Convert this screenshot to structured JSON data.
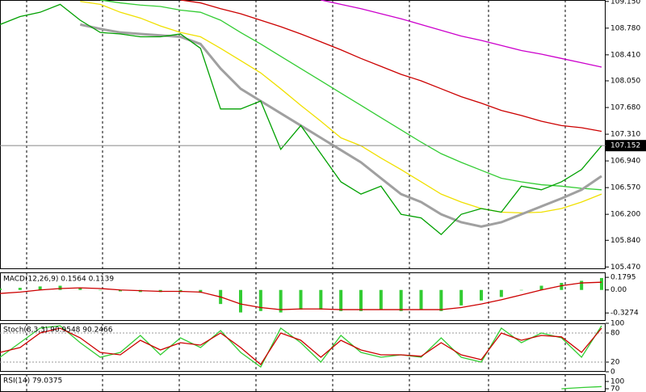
{
  "chart_data": [
    {
      "type": "line",
      "ylim": [
        105.44,
        109.17
      ],
      "yticks": [
        {
          "value": 109.15,
          "label": "109.150"
        },
        {
          "value": 108.78,
          "label": "108.780"
        },
        {
          "value": 108.41,
          "label": "108.410"
        },
        {
          "value": 108.05,
          "label": "108.050"
        },
        {
          "value": 107.68,
          "label": "107.680"
        },
        {
          "value": 107.31,
          "label": "107.310"
        },
        {
          "value": 106.94,
          "label": "106.940"
        },
        {
          "value": 106.57,
          "label": "106.570"
        },
        {
          "value": 106.2,
          "label": "106.200"
        },
        {
          "value": 105.84,
          "label": "105.840"
        },
        {
          "value": 105.47,
          "label": "105.470"
        }
      ],
      "last_price": 107.152,
      "series": [
        {
          "color": "#cc00cc",
          "values": [
            null,
            null,
            null,
            null,
            null,
            null,
            null,
            null,
            null,
            null,
            null,
            null,
            null,
            null,
            null,
            null,
            109.17,
            109.11,
            109.05,
            108.98,
            108.91,
            108.83,
            108.75,
            108.67,
            108.61,
            108.54,
            108.47,
            108.42,
            108.36,
            108.3,
            108.24
          ]
        },
        {
          "color": "#cc0000",
          "values": [
            null,
            null,
            null,
            null,
            null,
            null,
            null,
            null,
            null,
            109.17,
            109.13,
            109.05,
            108.98,
            108.89,
            108.8,
            108.7,
            108.59,
            108.48,
            108.36,
            108.25,
            108.14,
            108.05,
            107.94,
            107.83,
            107.74,
            107.64,
            107.57,
            107.49,
            107.43,
            107.4,
            107.35
          ]
        },
        {
          "color": "#33cc33",
          "values": [
            null,
            null,
            null,
            null,
            null,
            109.17,
            109.13,
            109.1,
            109.08,
            109.03,
            109.0,
            108.89,
            108.72,
            108.56,
            108.39,
            108.22,
            108.05,
            107.88,
            107.71,
            107.54,
            107.37,
            107.2,
            107.04,
            106.92,
            106.81,
            106.7,
            106.65,
            106.61,
            106.59,
            106.56,
            106.54
          ]
        },
        {
          "color": "#f0e000",
          "values": [
            null,
            null,
            null,
            null,
            109.15,
            109.11,
            109.0,
            108.92,
            108.81,
            108.72,
            108.66,
            108.5,
            108.33,
            108.16,
            107.94,
            107.71,
            107.49,
            107.26,
            107.15,
            106.98,
            106.82,
            106.65,
            106.48,
            106.37,
            106.28,
            106.23,
            106.22,
            106.23,
            106.28,
            106.37,
            106.48
          ]
        },
        {
          "color": "#a0a0a0",
          "width": 3,
          "values": [
            null,
            null,
            null,
            null,
            108.83,
            108.77,
            108.72,
            108.7,
            108.68,
            108.66,
            108.56,
            108.22,
            107.94,
            107.77,
            107.6,
            107.43,
            107.26,
            107.09,
            106.92,
            106.7,
            106.48,
            106.37,
            106.2,
            106.09,
            106.03,
            106.09,
            106.2,
            106.31,
            106.42,
            106.54,
            106.73
          ]
        },
        {
          "color": "#00a000",
          "values": [
            108.83,
            108.94,
            109.0,
            109.11,
            108.89,
            108.72,
            108.7,
            108.66,
            108.66,
            108.7,
            108.5,
            107.66,
            107.66,
            107.77,
            107.1,
            107.43,
            107.04,
            106.65,
            106.48,
            106.59,
            106.2,
            106.15,
            105.92,
            106.2,
            106.28,
            106.23,
            106.59,
            106.54,
            106.65,
            106.82,
            107.15
          ]
        }
      ]
    },
    {
      "type": "line",
      "title": "MACD(12,26,9) 0.1564 0.1139",
      "ylim": [
        -0.44,
        0.25
      ],
      "yticks": [
        0.1795,
        {
          "value": 0,
          "label": "0.00"
        },
        -0.3274
      ],
      "series": [
        {
          "type": "bar",
          "color": "#33cc33",
          "values": [
            0.02,
            0.03,
            0.05,
            0.06,
            0.03,
            0,
            -0.02,
            -0.03,
            -0.03,
            -0.03,
            -0.04,
            -0.2,
            -0.32,
            -0.3,
            -0.32,
            -0.28,
            -0.28,
            -0.3,
            -0.3,
            -0.28,
            -0.3,
            -0.28,
            -0.3,
            -0.22,
            -0.15,
            -0.1,
            0,
            0.06,
            0.1,
            0.13,
            0.17
          ]
        },
        {
          "color": "#cc0000",
          "values": [
            -0.05,
            -0.03,
            0,
            0.02,
            0.03,
            0.02,
            0,
            -0.01,
            -0.02,
            -0.02,
            -0.03,
            -0.1,
            -0.2,
            -0.25,
            -0.28,
            -0.27,
            -0.27,
            -0.28,
            -0.28,
            -0.28,
            -0.28,
            -0.28,
            -0.28,
            -0.25,
            -0.2,
            -0.14,
            -0.07,
            0,
            0.06,
            0.1,
            0.11
          ]
        }
      ]
    },
    {
      "type": "line",
      "title": "Stoch(8,3,3) 90.9548 90.2466",
      "ylim": [
        0,
        100
      ],
      "yticks": [
        100,
        80,
        20,
        0
      ],
      "levels": [
        80,
        20
      ],
      "series": [
        {
          "color": "#33cc33",
          "values": [
            30,
            60,
            90,
            95,
            60,
            30,
            40,
            75,
            35,
            70,
            50,
            85,
            40,
            10,
            90,
            60,
            20,
            75,
            40,
            30,
            35,
            30,
            70,
            30,
            20,
            90,
            60,
            80,
            70,
            30,
            95
          ]
        },
        {
          "color": "#cc0000",
          "values": [
            40,
            50,
            80,
            90,
            70,
            40,
            35,
            65,
            45,
            60,
            55,
            80,
            50,
            15,
            80,
            65,
            30,
            65,
            45,
            35,
            35,
            32,
            60,
            35,
            25,
            80,
            65,
            75,
            72,
            40,
            90
          ]
        }
      ]
    },
    {
      "type": "line",
      "title": "RSI(14) 79.0375",
      "ylim": [
        56.7,
        130
      ],
      "yticks": [
        100,
        70
      ],
      "series": [
        {
          "color": "#33cc33",
          "values": [
            null,
            null,
            null,
            null,
            null,
            null,
            null,
            null,
            null,
            null,
            null,
            null,
            null,
            null,
            null,
            null,
            null,
            null,
            null,
            null,
            null,
            null,
            null,
            null,
            null,
            null,
            null,
            null,
            70,
            75,
            79.0375
          ]
        }
      ]
    }
  ]
}
